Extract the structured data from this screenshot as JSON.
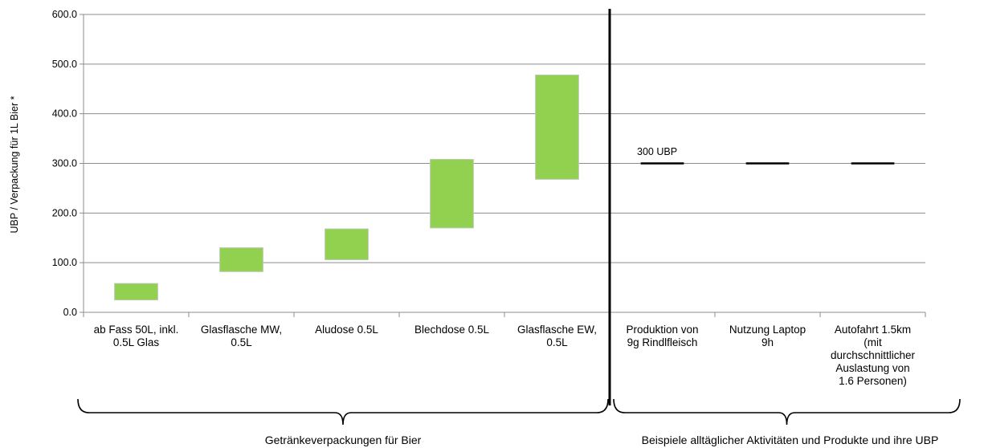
{
  "chart_data": {
    "type": "bar",
    "subtype": "floating-range",
    "ylabel": "UBP / Verpackung für 1L Bier *",
    "ylim": [
      0,
      600
    ],
    "yticks": [
      "0.0",
      "100.0",
      "200.0",
      "300.0",
      "400.0",
      "500.0",
      "600.0"
    ],
    "ytick_values": [
      0,
      100,
      200,
      300,
      400,
      500,
      600
    ],
    "grid": true,
    "categories": [
      [
        "ab Fass 50L, inkl.",
        "0.5L Glas"
      ],
      [
        "Glasflasche MW,",
        "0.5L"
      ],
      [
        "Aludose 0.5L"
      ],
      [
        "Blechdose 0.5L"
      ],
      [
        "Glasflasche EW,",
        "0.5L"
      ],
      [
        "Produktion von",
        "9g Rindlfleisch"
      ],
      [
        "Nutzung Laptop",
        "9h"
      ],
      [
        "Autofahrt 1.5km",
        "(mit",
        "durchschnittlicher",
        "Auslastung von",
        "1.6 Personen)"
      ]
    ],
    "ranges": [
      {
        "low": 25,
        "high": 58
      },
      {
        "low": 82,
        "high": 130
      },
      {
        "low": 106,
        "high": 168
      },
      {
        "low": 170,
        "high": 308
      },
      {
        "low": 268,
        "high": 478
      }
    ],
    "reference_lines": [
      {
        "category_index": 5,
        "value": 300
      },
      {
        "category_index": 6,
        "value": 300
      },
      {
        "category_index": 7,
        "value": 300
      }
    ],
    "annotation": "300 UBP",
    "range_color": "#92d050",
    "groups": [
      {
        "label": "Getränkeverpackungen für Bier",
        "from": 0,
        "to": 4
      },
      {
        "label": "Beispiele alltäglicher Aktivitäten und Produkte und ihre UBP",
        "from": 5,
        "to": 7
      }
    ]
  }
}
